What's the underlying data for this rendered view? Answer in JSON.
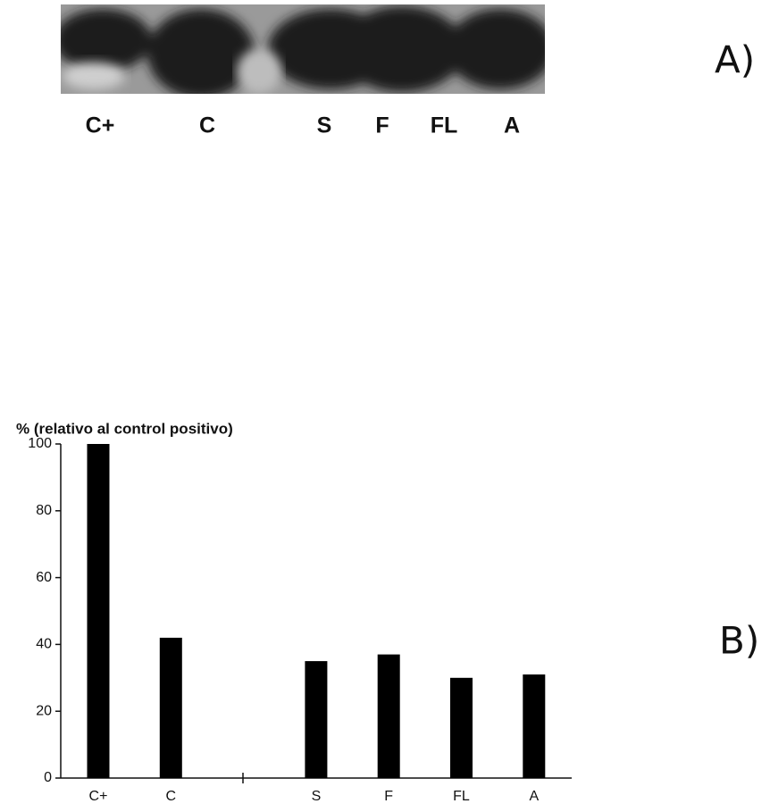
{
  "figure": {
    "panel_a": {
      "label": "A)",
      "lanes": [
        "C+",
        "C",
        "S",
        "F",
        "FL",
        "A"
      ]
    },
    "panel_b_label": "B)"
  },
  "chart_data": {
    "type": "bar",
    "title": "% (relativo al control positivo)",
    "categories": [
      "C+",
      "C",
      null,
      "S",
      "F",
      "FL",
      "A"
    ],
    "values": [
      100,
      42,
      null,
      35,
      37,
      30,
      31
    ],
    "color": "#000000",
    "ylim": [
      0,
      100
    ],
    "yticks": [
      0,
      20,
      40,
      60,
      80,
      100
    ],
    "grid": false
  }
}
